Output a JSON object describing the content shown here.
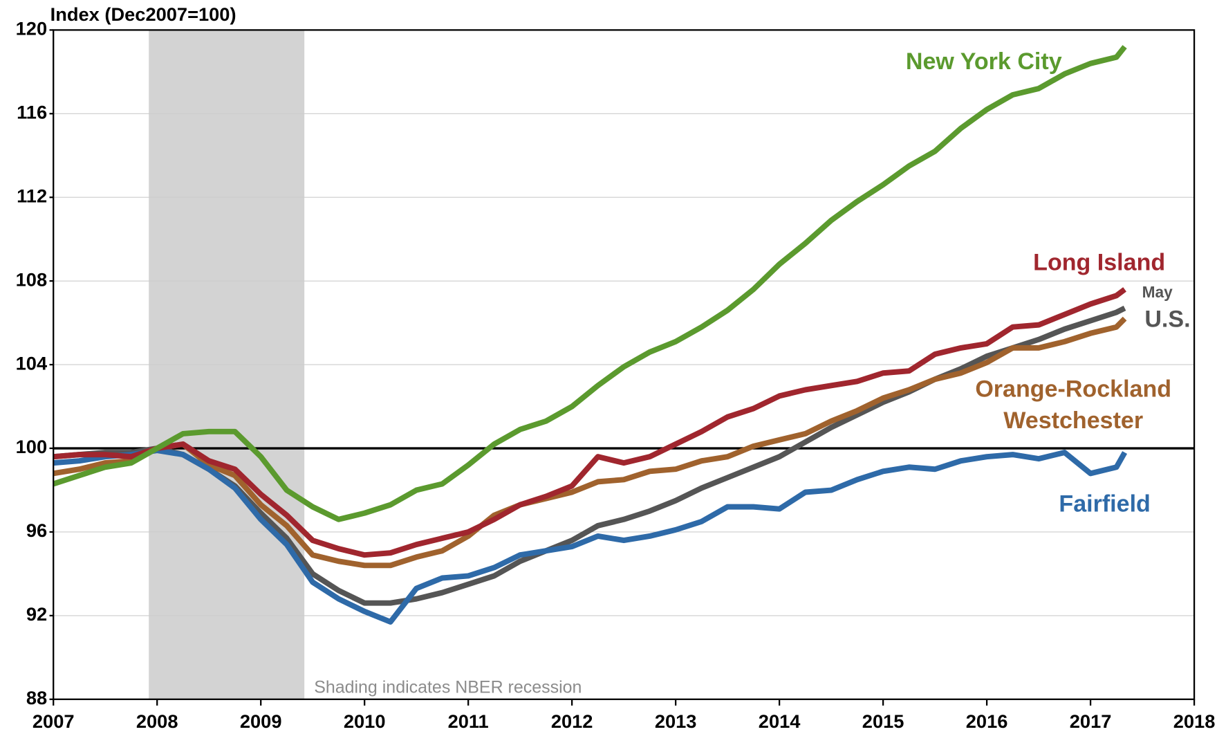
{
  "chart_data": {
    "type": "line",
    "y_axis_label": "Index (Dec2007=100)",
    "annotations": [
      "May",
      "Shading indicates NBER recession"
    ],
    "recession": [
      2007.92,
      2009.42
    ],
    "reference_line": 100,
    "xlim": [
      2007,
      2018
    ],
    "xticks": [
      2007,
      2008,
      2009,
      2010,
      2011,
      2012,
      2013,
      2014,
      2015,
      2016,
      2017,
      2018
    ],
    "ylim": [
      88,
      120
    ],
    "yticks": [
      88,
      92,
      96,
      100,
      104,
      108,
      112,
      116,
      120
    ],
    "grid": true,
    "x": [
      2007,
      2007.25,
      2007.5,
      2007.75,
      2008,
      2008.25,
      2008.5,
      2008.75,
      2009,
      2009.25,
      2009.5,
      2009.75,
      2010,
      2010.25,
      2010.5,
      2010.75,
      2011,
      2011.25,
      2011.5,
      2011.75,
      2012,
      2012.25,
      2012.5,
      2012.75,
      2013,
      2013.25,
      2013.5,
      2013.75,
      2014,
      2014.25,
      2014.5,
      2014.75,
      2015,
      2015.25,
      2015.5,
      2015.75,
      2016,
      2016.25,
      2016.5,
      2016.75,
      2017,
      2017.25,
      2017.33
    ],
    "series": [
      {
        "name": "New York City",
        "color": "#5b9a2e",
        "values": [
          98.3,
          98.7,
          99.1,
          99.3,
          100,
          100.7,
          100.8,
          100.8,
          99.6,
          98.0,
          97.2,
          96.6,
          96.9,
          97.3,
          98.0,
          98.3,
          99.2,
          100.2,
          100.9,
          101.3,
          102.0,
          103.0,
          103.9,
          104.6,
          105.1,
          105.8,
          106.6,
          107.6,
          108.8,
          109.8,
          110.9,
          111.8,
          112.6,
          113.5,
          114.2,
          115.3,
          116.2,
          116.9,
          117.2,
          117.9,
          118.4,
          118.7,
          119.2
        ]
      },
      {
        "name": "Long Island",
        "color": "#a0262e",
        "values": [
          99.6,
          99.7,
          99.7,
          99.6,
          100.0,
          100.2,
          99.4,
          99.0,
          97.8,
          96.8,
          95.6,
          95.2,
          94.9,
          95.0,
          95.4,
          95.7,
          96.0,
          96.6,
          97.3,
          97.7,
          98.2,
          99.6,
          99.3,
          99.6,
          100.2,
          100.8,
          101.5,
          101.9,
          102.5,
          102.8,
          103.0,
          103.2,
          103.6,
          103.7,
          104.5,
          104.8,
          105.0,
          105.8,
          105.9,
          106.4,
          106.9,
          107.3,
          107.6
        ]
      },
      {
        "name": "U.S.",
        "color": "#555555",
        "values": [
          99.6,
          99.7,
          99.8,
          99.8,
          100.0,
          99.7,
          99.0,
          98.2,
          96.9,
          95.7,
          94.0,
          93.2,
          92.6,
          92.6,
          92.8,
          93.1,
          93.5,
          93.9,
          94.6,
          95.1,
          95.6,
          96.3,
          96.6,
          97.0,
          97.5,
          98.1,
          98.6,
          99.1,
          99.6,
          100.3,
          101.0,
          101.6,
          102.2,
          102.7,
          103.3,
          103.8,
          104.4,
          104.8,
          105.2,
          105.7,
          106.1,
          106.5,
          106.7
        ]
      },
      {
        "name": "Orange-Rockland Westchester",
        "color": "#a0622d",
        "values": [
          98.8,
          99.0,
          99.3,
          99.4,
          100.0,
          100.2,
          99.2,
          98.7,
          97.3,
          96.3,
          94.9,
          94.6,
          94.4,
          94.4,
          94.8,
          95.1,
          95.8,
          96.8,
          97.3,
          97.6,
          97.9,
          98.4,
          98.5,
          98.9,
          99.0,
          99.4,
          99.6,
          100.1,
          100.4,
          100.7,
          101.3,
          101.8,
          102.4,
          102.8,
          103.3,
          103.6,
          104.1,
          104.8,
          104.8,
          105.1,
          105.5,
          105.8,
          106.2
        ]
      },
      {
        "name": "Fairfield",
        "color": "#2e6aa8",
        "values": [
          99.3,
          99.4,
          99.6,
          99.7,
          99.9,
          99.7,
          99.0,
          98.1,
          96.6,
          95.4,
          93.6,
          92.8,
          92.2,
          91.7,
          93.3,
          93.8,
          93.9,
          94.3,
          94.9,
          95.1,
          95.3,
          95.8,
          95.6,
          95.8,
          96.1,
          96.5,
          97.2,
          97.2,
          97.1,
          97.9,
          98.0,
          98.5,
          98.9,
          99.1,
          99.0,
          99.4,
          99.6,
          99.7,
          99.5,
          99.8,
          98.8,
          99.1,
          99.8
        ]
      }
    ]
  }
}
